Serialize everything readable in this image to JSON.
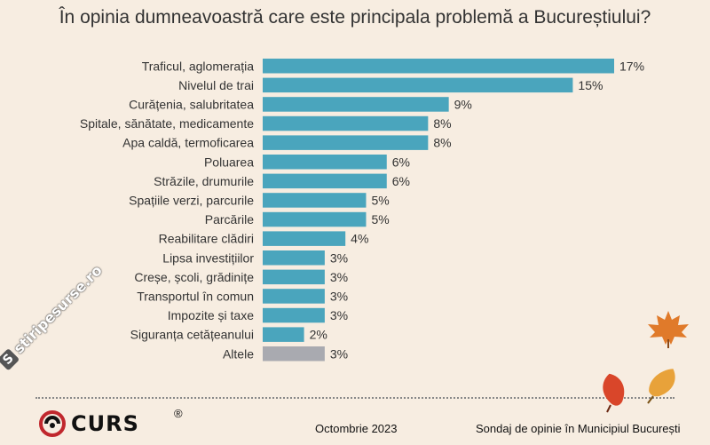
{
  "title": "În opinia dumneavoastră care este principala problemă a Bucureștiului?",
  "chart_data": {
    "type": "bar",
    "orientation": "horizontal",
    "categories": [
      "Traficul, aglomerația",
      "Nivelul de trai",
      "Curățenia, salubritatea",
      "Spitale, sănătate, medicamente",
      "Apa caldă, termoficarea",
      "Poluarea",
      "Străzile, drumurile",
      "Spațiile verzi, parcurile",
      "Parcările",
      "Reabilitare clădiri",
      "Lipsa investițiilor",
      "Creșe, școli, grădinițe",
      "Transportul în comun",
      "Impozite și taxe",
      "Siguranța cetățeanului",
      "Altele"
    ],
    "values": [
      17,
      15,
      9,
      8,
      8,
      6,
      6,
      5,
      5,
      4,
      3,
      3,
      3,
      3,
      2,
      3
    ],
    "value_labels": [
      "17%",
      "15%",
      "9%",
      "8%",
      "8%",
      "6%",
      "6%",
      "5%",
      "5%",
      "4%",
      "3%",
      "3%",
      "3%",
      "3%",
      "2%",
      "3%"
    ],
    "unit": "%",
    "xlim": [
      0,
      17
    ],
    "grid": false,
    "colors": {
      "bar": "#4aa5bd",
      "other_bar": "#a9aab0",
      "label": "#333333"
    }
  },
  "footer": {
    "logo_text": "CURS",
    "logo_mark": "®",
    "date": "Octombrie 2023",
    "survey": "Sondaj de opinie în Municipiul București"
  },
  "watermark": {
    "text": "stiripesurse.ro",
    "badge": "S"
  },
  "decor": {
    "leaf_colors": [
      "#e07a2a",
      "#d9462a",
      "#e8a23a"
    ]
  }
}
